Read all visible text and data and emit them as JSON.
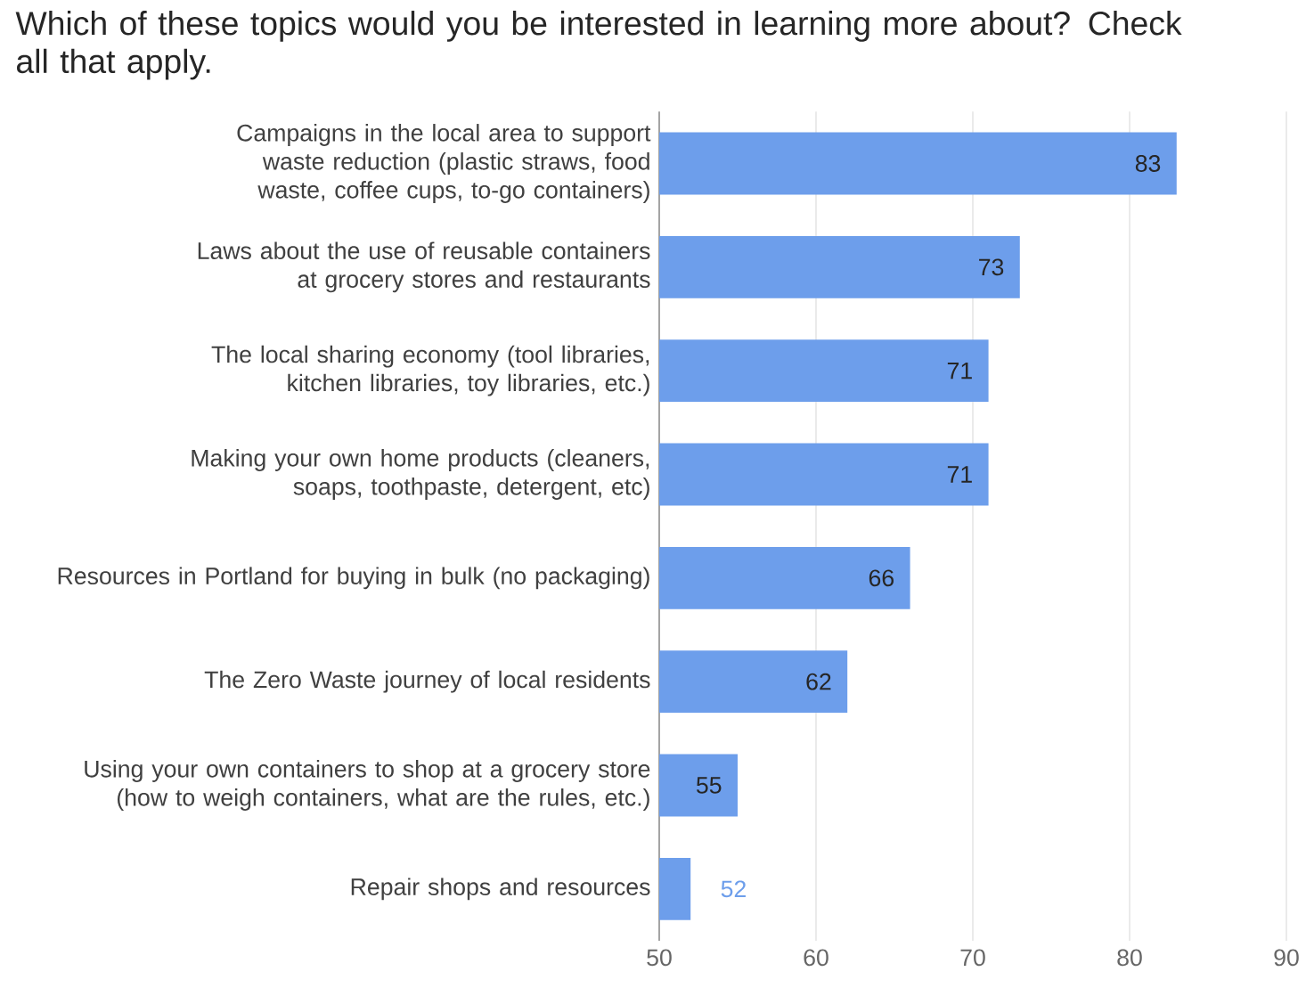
{
  "chart_data": {
    "type": "bar",
    "orientation": "horizontal",
    "title": "Which of these topics would you be interested in learning more about? Check all that apply.",
    "categories": [
      "Campaigns in the local area to support waste reduction (plastic straws, food waste, coffee cups, to-go containers)",
      "Laws about the use of reusable containers at grocery stores and restaurants",
      "The local sharing economy (tool libraries, kitchen libraries, toy libraries, etc.)",
      "Making your own home products (cleaners, soaps, toothpaste, detergent, etc)",
      "Resources in Portland for buying in bulk (no packaging)",
      "The Zero Waste journey of local residents",
      "Using your own containers to shop at a grocery store (how to weigh containers, what are the rules, etc.)",
      "Repair shops and resources"
    ],
    "values": [
      83,
      73,
      71,
      71,
      66,
      62,
      55,
      52
    ],
    "color": "#6d9eeb",
    "xlim": [
      50,
      90
    ],
    "xticks": [
      50,
      60,
      70,
      80,
      90
    ],
    "grid": "x",
    "data_labels": true
  }
}
